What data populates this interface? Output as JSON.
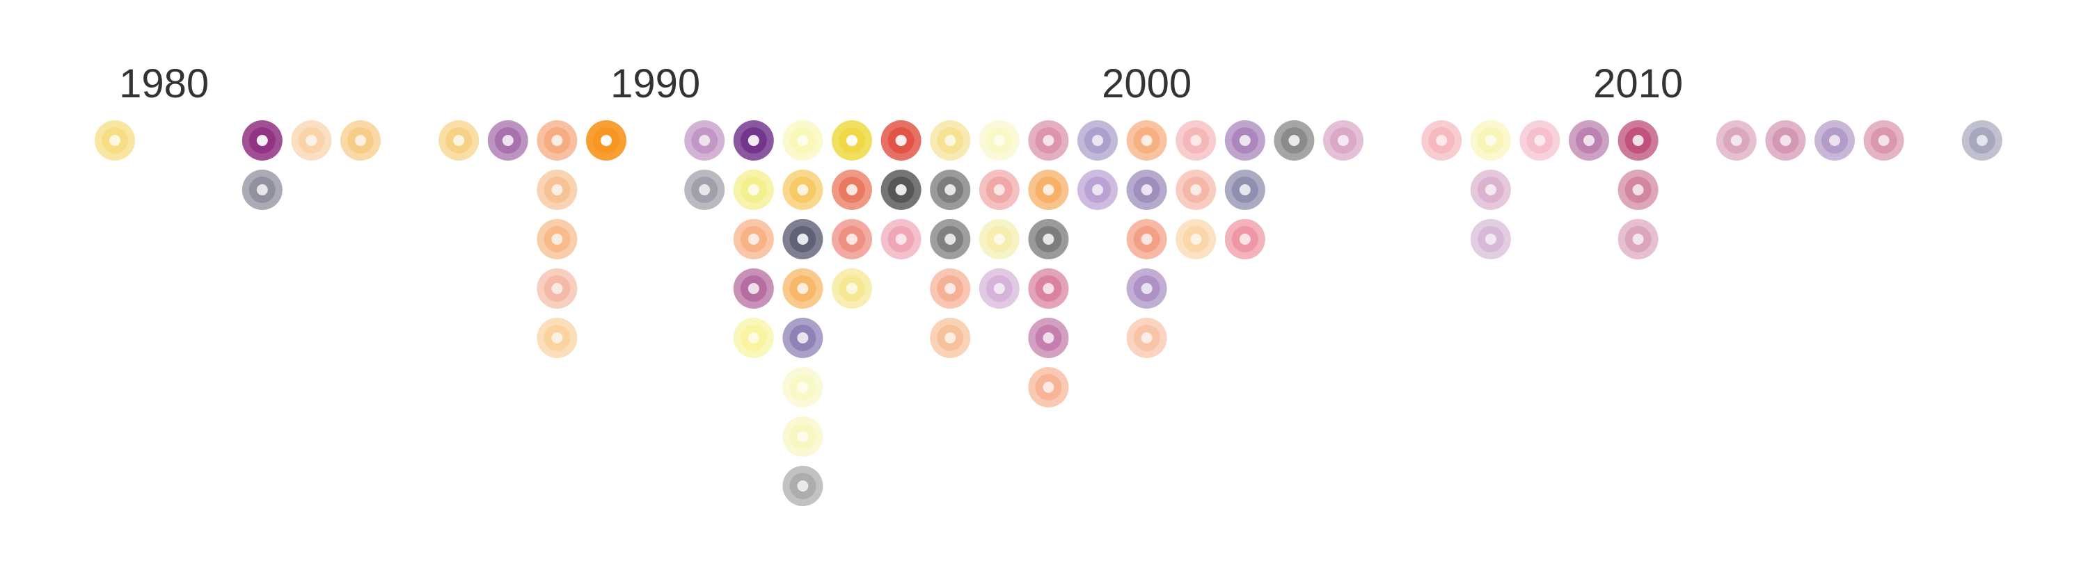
{
  "chart_data": {
    "type": "scatter",
    "title": "",
    "xlabel": "",
    "ylabel": "",
    "decade_labels": [
      "1980",
      "1990",
      "2000",
      "2010"
    ],
    "decade_years": [
      1980,
      1990,
      2000,
      2010
    ],
    "grid": false,
    "legend": "none",
    "columns": [
      {
        "year": 1979,
        "dots": [
          {
            "color": "#f5d76e",
            "strength": 0.5
          }
        ]
      },
      {
        "year": 1982,
        "dots": [
          {
            "color": "#8e2a7e",
            "strength": 0.85
          },
          {
            "color": "#7a7a8c",
            "strength": 0.5
          }
        ]
      },
      {
        "year": 1983,
        "dots": [
          {
            "color": "#f7c28a",
            "strength": 0.3
          }
        ]
      },
      {
        "year": 1984,
        "dots": [
          {
            "color": "#f5c06a",
            "strength": 0.45
          }
        ]
      },
      {
        "year": 1986,
        "dots": [
          {
            "color": "#f5c86a",
            "strength": 0.45
          }
        ]
      },
      {
        "year": 1987,
        "dots": [
          {
            "color": "#9a5aa0",
            "strength": 0.55
          }
        ]
      },
      {
        "year": 1988,
        "dots": [
          {
            "color": "#f59a6a",
            "strength": 0.5
          },
          {
            "color": "#f7b27a",
            "strength": 0.4
          },
          {
            "color": "#f5aa6a",
            "strength": 0.4
          },
          {
            "color": "#f2a48a",
            "strength": 0.35
          },
          {
            "color": "#f7c27a",
            "strength": 0.3
          }
        ]
      },
      {
        "year": 1989,
        "dots": [
          {
            "color": "#f7941d",
            "strength": 1.0
          }
        ]
      },
      {
        "year": 1991,
        "dots": [
          {
            "color": "#b07ab5",
            "strength": 0.4
          },
          {
            "color": "#8a8a96",
            "strength": 0.45
          }
        ]
      },
      {
        "year": 1992,
        "dots": [
          {
            "color": "#6a2a86",
            "strength": 0.8
          },
          {
            "color": "#f2ec7a",
            "strength": 0.5
          },
          {
            "color": "#f5a06a",
            "strength": 0.45
          },
          {
            "color": "#a8508e",
            "strength": 0.5
          },
          {
            "color": "#f5f07a",
            "strength": 0.3
          }
        ]
      },
      {
        "year": 1993,
        "dots": [
          {
            "color": "#f7f5a0",
            "strength": 0.3
          },
          {
            "color": "#f5c04a",
            "strength": 0.5
          },
          {
            "color": "#50506a",
            "strength": 0.7
          },
          {
            "color": "#f5aa4a",
            "strength": 0.5
          },
          {
            "color": "#7a6aa8",
            "strength": 0.5
          },
          {
            "color": "#f7f5b0",
            "strength": 0.25
          },
          {
            "color": "#f5f2a8",
            "strength": 0.25
          },
          {
            "color": "#9a9a9a",
            "strength": 0.45
          }
        ]
      },
      {
        "year": 1994,
        "dots": [
          {
            "color": "#f0d840",
            "strength": 0.9
          },
          {
            "color": "#e8684a",
            "strength": 0.6
          },
          {
            "color": "#ec7a6a",
            "strength": 0.5
          },
          {
            "color": "#f2e070",
            "strength": 0.35
          }
        ]
      },
      {
        "year": 1995,
        "dots": [
          {
            "color": "#e04a3a",
            "strength": 0.8
          },
          {
            "color": "#4a4a4a",
            "strength": 0.75
          },
          {
            "color": "#ea8aa0",
            "strength": 0.35
          }
        ]
      },
      {
        "year": 1996,
        "dots": [
          {
            "color": "#f2d870",
            "strength": 0.35
          },
          {
            "color": "#6a6a6a",
            "strength": 0.6
          },
          {
            "color": "#6a6a6a",
            "strength": 0.55
          },
          {
            "color": "#f29a7a",
            "strength": 0.4
          },
          {
            "color": "#f5ae7a",
            "strength": 0.35
          }
        ]
      },
      {
        "year": 1997,
        "dots": [
          {
            "color": "#f7f5b0",
            "strength": 0.25
          },
          {
            "color": "#ea8a8a",
            "strength": 0.35
          },
          {
            "color": "#f2e890",
            "strength": 0.3
          },
          {
            "color": "#c89acb",
            "strength": 0.35
          }
        ]
      },
      {
        "year": 1998,
        "dots": [
          {
            "color": "#d47a9a",
            "strength": 0.45
          },
          {
            "color": "#f5a04a",
            "strength": 0.5
          },
          {
            "color": "#6a6a6a",
            "strength": 0.6
          },
          {
            "color": "#d0668a",
            "strength": 0.45
          },
          {
            "color": "#b8609a",
            "strength": 0.45
          },
          {
            "color": "#f5a07a",
            "strength": 0.4
          }
        ]
      },
      {
        "year": 1999,
        "dots": [
          {
            "color": "#9a8ac0",
            "strength": 0.45
          },
          {
            "color": "#a888c8",
            "strength": 0.4
          }
        ]
      },
      {
        "year": 2000,
        "dots": [
          {
            "color": "#f5a06a",
            "strength": 0.5
          },
          {
            "color": "#8a78b0",
            "strength": 0.5
          },
          {
            "color": "#f28a6a",
            "strength": 0.45
          },
          {
            "color": "#9a78b8",
            "strength": 0.45
          },
          {
            "color": "#f5b08a",
            "strength": 0.35
          }
        ]
      },
      {
        "year": 2001,
        "dots": [
          {
            "color": "#f2a0a0",
            "strength": 0.35
          },
          {
            "color": "#f2a08a",
            "strength": 0.35
          },
          {
            "color": "#f7c88a",
            "strength": 0.3
          }
        ]
      },
      {
        "year": 2002,
        "dots": [
          {
            "color": "#9a70b0",
            "strength": 0.5
          },
          {
            "color": "#7a78a0",
            "strength": 0.5
          },
          {
            "color": "#ea7a8a",
            "strength": 0.4
          }
        ]
      },
      {
        "year": 2003,
        "dots": [
          {
            "color": "#7a7a7a",
            "strength": 0.6
          }
        ]
      },
      {
        "year": 2004,
        "dots": [
          {
            "color": "#d090b8",
            "strength": 0.4
          }
        ]
      },
      {
        "year": 2006,
        "dots": [
          {
            "color": "#f2a0a8",
            "strength": 0.3
          }
        ]
      },
      {
        "year": 2007,
        "dots": [
          {
            "color": "#f5f2a0",
            "strength": 0.35
          },
          {
            "color": "#d09ac0",
            "strength": 0.35
          },
          {
            "color": "#c8a0c8",
            "strength": 0.3
          }
        ]
      },
      {
        "year": 2008,
        "dots": [
          {
            "color": "#f2a8b8",
            "strength": 0.3
          }
        ]
      },
      {
        "year": 2009,
        "dots": [
          {
            "color": "#b06aa0",
            "strength": 0.5
          }
        ]
      },
      {
        "year": 2010,
        "dots": [
          {
            "color": "#b83a6a",
            "strength": 0.6
          },
          {
            "color": "#c86a8a",
            "strength": 0.45
          },
          {
            "color": "#d088a8",
            "strength": 0.35
          }
        ]
      },
      {
        "year": 2012,
        "dots": [
          {
            "color": "#d08aa8",
            "strength": 0.35
          }
        ]
      },
      {
        "year": 2013,
        "dots": [
          {
            "color": "#c87aa0",
            "strength": 0.4
          }
        ]
      },
      {
        "year": 2014,
        "dots": [
          {
            "color": "#a080b8",
            "strength": 0.4
          }
        ]
      },
      {
        "year": 2015,
        "dots": [
          {
            "color": "#d07a98",
            "strength": 0.4
          }
        ]
      },
      {
        "year": 2017,
        "dots": [
          {
            "color": "#8a8aa8",
            "strength": 0.35
          }
        ]
      }
    ]
  }
}
